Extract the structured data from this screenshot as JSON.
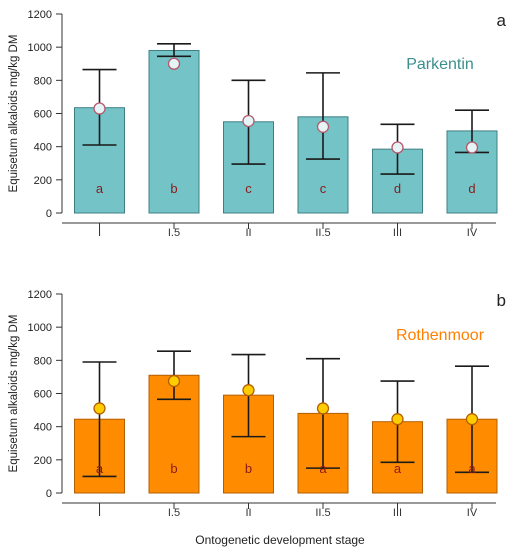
{
  "chart_data": [
    {
      "type": "bar",
      "panel_letter": "a",
      "site_label": "Parkentin",
      "ylabel": "Equisetum alkaloids  mg/kg DM",
      "xlabel": "",
      "ylim": [
        0,
        1200
      ],
      "yticks": [
        "0",
        "200",
        "400",
        "600",
        "800",
        "1000",
        "1200"
      ],
      "categories": [
        "I",
        "I.5",
        "II",
        "II.5",
        "III",
        "IV"
      ],
      "values": [
        635,
        980,
        550,
        580,
        385,
        495
      ],
      "error_low": [
        410,
        945,
        295,
        325,
        235,
        365
      ],
      "error_high": [
        865,
        1020,
        800,
        845,
        535,
        620
      ],
      "markers": [
        630,
        900,
        555,
        520,
        395,
        395
      ],
      "significance": [
        "a",
        "b",
        "c",
        "c",
        "d",
        "d"
      ],
      "colors": {
        "bar": "#74c3c7",
        "bar_edge": "#3f7f84",
        "marker": "#e6f4f6",
        "marker_edge": "#b55a6e",
        "site": "#3b8f8f",
        "sig": "#8b1a1a"
      }
    },
    {
      "type": "bar",
      "panel_letter": "b",
      "site_label": "Rothenmoor",
      "ylabel": "Equisetum alkaloids  mg/kg DM",
      "xlabel": "Ontogenetic development stage",
      "ylim": [
        0,
        1200
      ],
      "yticks": [
        "0",
        "200",
        "400",
        "600",
        "800",
        "1000",
        "1200"
      ],
      "categories": [
        "I",
        "I.5",
        "II",
        "II.5",
        "III",
        "IV"
      ],
      "values": [
        445,
        710,
        590,
        480,
        430,
        445
      ],
      "error_low": [
        100,
        565,
        340,
        150,
        185,
        125
      ],
      "error_high": [
        790,
        855,
        835,
        810,
        675,
        765
      ],
      "markers": [
        510,
        675,
        620,
        510,
        445,
        445
      ],
      "significance": [
        "a",
        "b",
        "b",
        "a",
        "a",
        "a"
      ],
      "colors": {
        "bar": "#ff8c00",
        "bar_edge": "#b35f00",
        "marker": "#ffcc00",
        "marker_edge": "#b35f00",
        "site": "#ff7f00",
        "sig": "#8b1a1a"
      }
    }
  ]
}
